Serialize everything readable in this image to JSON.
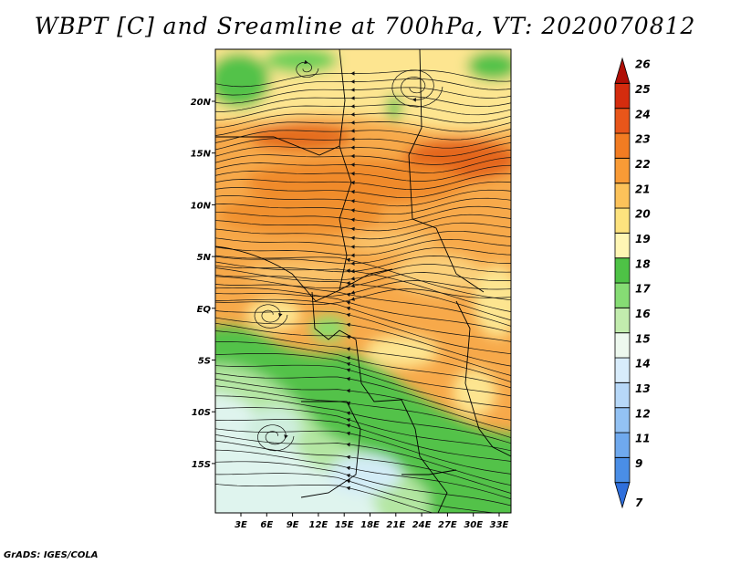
{
  "title": "WBPT [C] and Sreamline at 700hPa, VT: 2020070812",
  "credit": "GrADS: IGES/COLA",
  "lat_labels": [
    "20N",
    "15N",
    "10N",
    "5N",
    "EQ",
    "5S",
    "10S",
    "15S"
  ],
  "lon_labels": [
    "3E",
    "6E",
    "9E",
    "12E",
    "15E",
    "18E",
    "21E",
    "24E",
    "27E",
    "30E",
    "33E"
  ],
  "colorbar": {
    "labels": [
      "7",
      "9",
      "11",
      "12",
      "13",
      "14",
      "15",
      "16",
      "17",
      "18",
      "19",
      "20",
      "21",
      "22",
      "23",
      "24",
      "25",
      "26"
    ],
    "colors": [
      "#2f6fdc",
      "#4a8ee6",
      "#6fa9ee",
      "#93c2f4",
      "#b7d8f8",
      "#d8ecfb",
      "#edf8ee",
      "#c2ecae",
      "#86dc74",
      "#4ec246",
      "#fff6b4",
      "#fde27e",
      "#fcc25a",
      "#f99b36",
      "#f27c22",
      "#e8561a",
      "#d42c0e",
      "#b00f06"
    ]
  },
  "legend_colors": {
    "warm": "#f4a440",
    "yellow": "#fde590",
    "green": "#52c24a",
    "lightgreen": "#b4e6a2",
    "pale": "#e0f4ee",
    "hot": "#ea7a22"
  }
}
